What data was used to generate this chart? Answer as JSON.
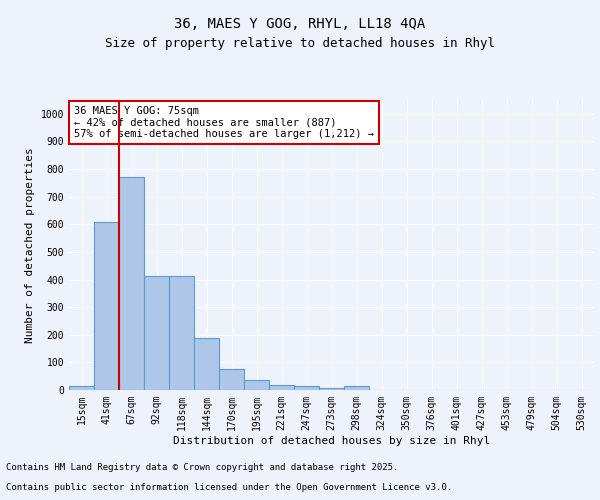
{
  "title_line1": "36, MAES Y GOG, RHYL, LL18 4QA",
  "title_line2": "Size of property relative to detached houses in Rhyl",
  "xlabel": "Distribution of detached houses by size in Rhyl",
  "ylabel": "Number of detached properties",
  "categories": [
    "15sqm",
    "41sqm",
    "67sqm",
    "92sqm",
    "118sqm",
    "144sqm",
    "170sqm",
    "195sqm",
    "221sqm",
    "247sqm",
    "273sqm",
    "298sqm",
    "324sqm",
    "350sqm",
    "376sqm",
    "401sqm",
    "427sqm",
    "453sqm",
    "479sqm",
    "504sqm",
    "530sqm"
  ],
  "values": [
    14,
    607,
    770,
    413,
    413,
    190,
    75,
    37,
    18,
    15,
    9,
    13,
    0,
    0,
    0,
    0,
    0,
    0,
    0,
    0,
    0
  ],
  "bar_color": "#aec6e8",
  "bar_edge_color": "#5b9bd5",
  "bar_edge_width": 0.8,
  "vline_x_index": 2,
  "vline_color": "#cc0000",
  "annotation_text": "36 MAES Y GOG: 75sqm\n← 42% of detached houses are smaller (887)\n57% of semi-detached houses are larger (1,212) →",
  "annotation_box_edge_color": "#cc0000",
  "annotation_box_facecolor": "#ffffff",
  "ylim": [
    0,
    1050
  ],
  "yticks": [
    0,
    100,
    200,
    300,
    400,
    500,
    600,
    700,
    800,
    900,
    1000
  ],
  "background_color": "#eef2fb",
  "plot_bg_color": "#eef2fb",
  "grid_color": "#ffffff",
  "footer_line1": "Contains HM Land Registry data © Crown copyright and database right 2025.",
  "footer_line2": "Contains public sector information licensed under the Open Government Licence v3.0.",
  "title_fontsize": 10,
  "subtitle_fontsize": 9,
  "axis_label_fontsize": 8,
  "tick_fontsize": 7,
  "annotation_fontsize": 7.5,
  "footer_fontsize": 6.5
}
